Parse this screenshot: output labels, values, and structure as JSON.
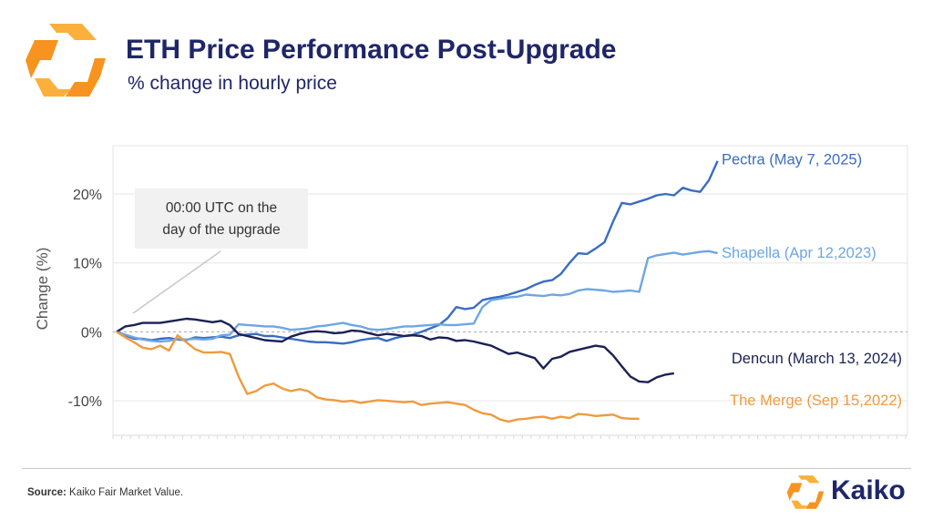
{
  "header": {
    "title": "ETH Price Performance Post-Upgrade",
    "subtitle": "% change in hourly price"
  },
  "brand": {
    "name": "Kaiko",
    "orange": "#f7931e",
    "orange_light": "#fbb03b",
    "navy": "#1f2668"
  },
  "footer": {
    "source_label": "Source:",
    "source_text": " Kaiko Fair Market Value."
  },
  "chart_data": {
    "type": "line",
    "title": "ETH Price Performance Post-Upgrade",
    "subtitle": "% change in hourly price",
    "ylabel": "Change (%)",
    "xlabel": "",
    "ylim": [
      -15,
      27
    ],
    "yticks": [
      20,
      10,
      0,
      -10
    ],
    "ytick_labels": [
      "20%",
      "10%",
      "0%",
      "-10%"
    ],
    "grid": true,
    "zero_line": "dashed",
    "legend": "line-end labels",
    "annotation": "00:00 UTC on the\nday of the upgrade",
    "series": [
      {
        "name": "Pectra (May 7, 2025)",
        "color": "#3a6cc4",
        "values": [
          0,
          -0.5,
          -1.0,
          -1.0,
          -1.2,
          -1.0,
          -0.9,
          -1.1,
          -1.2,
          -0.8,
          -0.9,
          -0.8,
          -0.7,
          -0.9,
          -0.5,
          -0.4,
          -0.3,
          -0.6,
          -0.6,
          -0.8,
          -1.0,
          -1.2,
          -1.4,
          -1.5,
          -1.5,
          -1.6,
          -1.7,
          -1.5,
          -1.2,
          -1.0,
          -0.9,
          -1.3,
          -0.9,
          -0.6,
          -0.4,
          0.0,
          0.5,
          1.0,
          2.0,
          3.6,
          3.3,
          3.5,
          4.6,
          4.9,
          5.1,
          5.4,
          5.8,
          6.2,
          6.8,
          7.3,
          7.5,
          8.4,
          10.0,
          11.4,
          11.3,
          12.1,
          13.0,
          16.0,
          18.7,
          18.5,
          18.9,
          19.3,
          19.8,
          20.0,
          19.8,
          20.9,
          20.5,
          20.3,
          22.0,
          24.8
        ]
      },
      {
        "name": "Shapella (Apr 12,2023)",
        "color": "#6ea6e3",
        "values": [
          0,
          -0.4,
          -0.8,
          -1.1,
          -1.3,
          -1.4,
          -1.3,
          -1.0,
          -1.1,
          -1.0,
          -1.1,
          -1.0,
          -0.5,
          -0.4,
          1.1,
          1.0,
          0.9,
          0.8,
          0.8,
          0.6,
          0.3,
          0.4,
          0.5,
          0.8,
          0.9,
          1.1,
          1.3,
          1.0,
          0.8,
          0.4,
          0.3,
          0.4,
          0.6,
          0.8,
          0.8,
          0.9,
          1.0,
          1.1,
          1.0,
          1.0,
          1.1,
          1.2,
          3.6,
          4.6,
          4.8,
          5.0,
          5.1,
          5.4,
          5.3,
          5.2,
          5.4,
          5.3,
          5.5,
          6.0,
          6.2,
          6.1,
          6.0,
          5.8,
          5.9,
          6.0,
          5.8,
          10.7,
          11.1,
          11.3,
          11.5,
          11.2,
          11.4,
          11.6,
          11.7,
          11.4
        ]
      },
      {
        "name": "Dencun (March 13, 2024)",
        "color": "#1b2155",
        "values": [
          0,
          0.8,
          1.0,
          1.3,
          1.3,
          1.3,
          1.5,
          1.7,
          1.9,
          1.8,
          1.6,
          1.4,
          1.6,
          1.0,
          -0.3,
          -0.6,
          -0.9,
          -1.2,
          -1.3,
          -1.4,
          -0.7,
          -0.3,
          0.0,
          0.1,
          0.0,
          -0.2,
          -0.1,
          0.2,
          0.1,
          -0.2,
          -0.5,
          -0.3,
          -0.4,
          -0.6,
          -0.5,
          -0.6,
          -1.1,
          -0.8,
          -0.9,
          -1.3,
          -1.2,
          -1.4,
          -1.7,
          -2.0,
          -2.6,
          -3.2,
          -3.0,
          -3.4,
          -3.8,
          -5.3,
          -3.9,
          -3.6,
          -2.9,
          -2.6,
          -2.3,
          -2.0,
          -2.2,
          -3.4,
          -5.0,
          -6.5,
          -7.2,
          -7.3,
          -6.6,
          -6.2,
          -6.0
        ]
      },
      {
        "name": "The Merge (Sep 15,2022)",
        "color": "#ee9b3e",
        "values": [
          0,
          -0.8,
          -1.5,
          -2.3,
          -2.5,
          -2.0,
          -2.7,
          -0.5,
          -1.5,
          -2.5,
          -3.0,
          -3.0,
          -2.9,
          -3.2,
          -6.5,
          -9.0,
          -8.6,
          -7.8,
          -7.5,
          -8.2,
          -8.6,
          -8.3,
          -8.6,
          -9.5,
          -9.8,
          -9.9,
          -10.1,
          -10.0,
          -10.3,
          -10.1,
          -9.9,
          -10.0,
          -10.1,
          -10.2,
          -10.1,
          -10.6,
          -10.4,
          -10.3,
          -10.2,
          -10.4,
          -10.6,
          -11.3,
          -11.8,
          -12.0,
          -12.7,
          -13.0,
          -12.7,
          -12.6,
          -12.4,
          -12.3,
          -12.6,
          -12.3,
          -12.5,
          -11.9,
          -12.0,
          -12.2,
          -12.1,
          -12.0,
          -12.5,
          -12.6,
          -12.6
        ]
      }
    ]
  }
}
